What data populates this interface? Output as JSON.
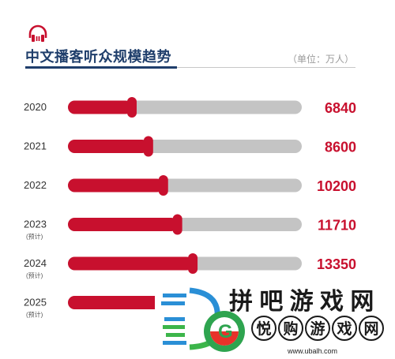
{
  "header": {
    "title": "中文播客听众规模趋势",
    "unit": "（单位：万人）",
    "icon": "headphones-icon"
  },
  "colors": {
    "accent": "#c8102e",
    "track": "#c4c4c4",
    "title": "#1f3e6b"
  },
  "chart_data": {
    "type": "bar",
    "title": "中文播客听众规模趋势",
    "unit": "万人",
    "categories": [
      "2020",
      "2021",
      "2022",
      "2023",
      "2024",
      "2025"
    ],
    "category_notes": [
      "",
      "",
      "",
      "(预计)",
      "(预计)",
      "(预计)"
    ],
    "values": [
      6840,
      8600,
      10200,
      11710,
      13350,
      null
    ],
    "value_labels": [
      "6840",
      "8600",
      "10200",
      "11710",
      "13350",
      ""
    ],
    "xlim": [
      0,
      25000
    ],
    "grid": false,
    "legend": "none"
  },
  "watermark": {
    "top_text": "拼 吧 游 戏 网",
    "chars": [
      "悦",
      "购",
      "游",
      "戏",
      "网"
    ],
    "url": "www.ubalh.com",
    "logo_icon": "g-logo-icon"
  }
}
